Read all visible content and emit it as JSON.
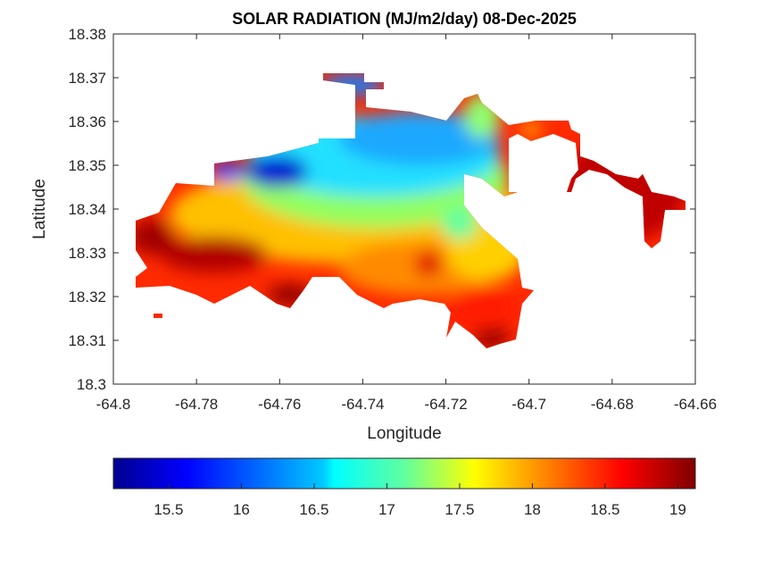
{
  "chart_data": {
    "type": "heatmap",
    "subtype": "filled-contour-map",
    "title": "SOLAR RADIATION (MJ/m2/day) 08-Dec-2025",
    "xlabel": "Longitude",
    "ylabel": "Latitude",
    "xlim": [
      -64.8,
      -64.66
    ],
    "ylim": [
      18.3,
      18.38
    ],
    "xticks": [
      "-64.8",
      "-64.78",
      "-64.76",
      "-64.74",
      "-64.72",
      "-64.7",
      "-64.68",
      "-64.66"
    ],
    "yticks": [
      "18.3",
      "18.31",
      "18.32",
      "18.33",
      "18.34",
      "18.35",
      "18.36",
      "18.37",
      "18.38"
    ],
    "grid": false,
    "colormap": "jet",
    "colorbar": {
      "placement": "bottom",
      "clim": [
        15.12,
        19.12
      ],
      "ticks": [
        "15.5",
        "16",
        "16.5",
        "17",
        "17.5",
        "18",
        "18.5",
        "19"
      ]
    },
    "regions": [
      {
        "name": "southwest coast",
        "approx_value": 18.7
      },
      {
        "name": "north-central interior",
        "approx_value": 16.4
      },
      {
        "name": "northwest pocket",
        "approx_value": 15.6
      },
      {
        "name": "southeast peninsula",
        "approx_value": 18.6
      },
      {
        "name": "east arm",
        "approx_value": 18.9
      }
    ]
  }
}
